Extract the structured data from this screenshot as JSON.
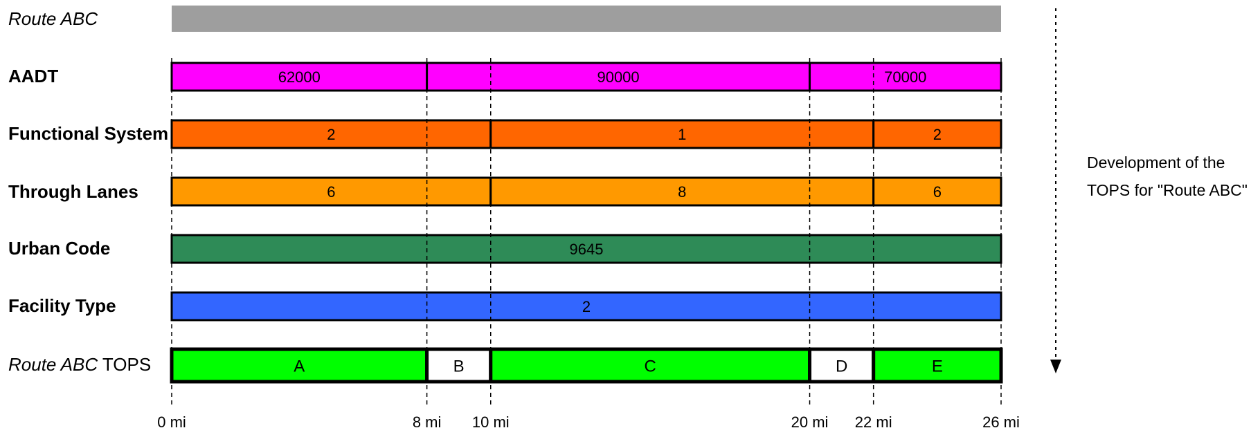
{
  "route_title": "Route ABC",
  "rows": [
    {
      "id": "aadt",
      "label": "AADT",
      "color": "#ff00ff",
      "segments": [
        {
          "start": 0,
          "end": 8,
          "value": "62000"
        },
        {
          "start": 8,
          "end": 20,
          "value": "90000"
        },
        {
          "start": 20,
          "end": 26,
          "value": "70000"
        }
      ]
    },
    {
      "id": "functional",
      "label": "Functional System",
      "color": "#ff6600",
      "segments": [
        {
          "start": 0,
          "end": 10,
          "value": "2"
        },
        {
          "start": 10,
          "end": 22,
          "value": "1"
        },
        {
          "start": 22,
          "end": 26,
          "value": "2"
        }
      ]
    },
    {
      "id": "lanes",
      "label": "Through Lanes",
      "color": "#ff9900",
      "segments": [
        {
          "start": 0,
          "end": 10,
          "value": "6"
        },
        {
          "start": 10,
          "end": 22,
          "value": "8"
        },
        {
          "start": 22,
          "end": 26,
          "value": "6"
        }
      ]
    },
    {
      "id": "urban",
      "label": "Urban Code",
      "color": "#2e8b57",
      "segments": [
        {
          "start": 0,
          "end": 26,
          "value": "9645"
        }
      ]
    },
    {
      "id": "facility",
      "label": "Facility Type",
      "color": "#3366ff",
      "segments": [
        {
          "start": 0,
          "end": 26,
          "value": "2"
        }
      ]
    }
  ],
  "tops": {
    "label_italic": "Route ABC",
    "label_suffix": "TOPS",
    "segments": [
      {
        "start": 0,
        "end": 8,
        "value": "A",
        "color": "#00ff00"
      },
      {
        "start": 8,
        "end": 10,
        "value": "B",
        "color": "#ffffff"
      },
      {
        "start": 10,
        "end": 20,
        "value": "C",
        "color": "#00ff00"
      },
      {
        "start": 20,
        "end": 22,
        "value": "D",
        "color": "#ffffff"
      },
      {
        "start": 22,
        "end": 26,
        "value": "E",
        "color": "#00ff00"
      }
    ]
  },
  "milepoints": [
    {
      "value": 0,
      "label": "0 mi"
    },
    {
      "value": 8,
      "label": "8 mi"
    },
    {
      "value": 10,
      "label": "10 mi"
    },
    {
      "value": 20,
      "label": "20 mi"
    },
    {
      "value": 22,
      "label": "22 mi"
    },
    {
      "value": 26,
      "label": "26 mi"
    }
  ],
  "side_note": {
    "line1": "Development of the",
    "line2": "TOPS for \"Route ABC\""
  },
  "route_bar_color": "#9e9e9e"
}
